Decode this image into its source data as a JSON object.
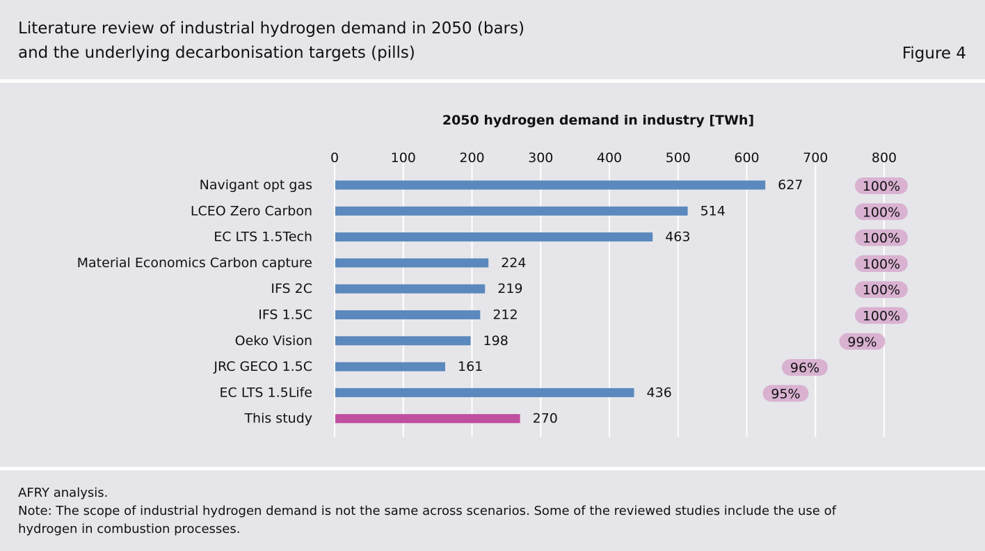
{
  "header": {
    "title_line1": "Literature review of industrial hydrogen demand in 2050 (bars)",
    "title_line2": "and the underlying decarbonisation targets (pills)",
    "figure_label": "Figure 4"
  },
  "footer": {
    "source": "AFRY analysis.",
    "note": "Note: The scope of industrial hydrogen demand is not the same across scenarios. Some of the reviewed studies include the use of hydrogen in combustion processes."
  },
  "colors": {
    "bar": "#5b88bd",
    "bar_highlight": "#bf4fa0",
    "pill": "#d9b2d1",
    "grid": "#ffffff"
  },
  "chart_data": {
    "type": "bar",
    "orientation": "horizontal",
    "xlabel": "2050 hydrogen demand in industry [TWh]",
    "xlim": [
      0,
      800
    ],
    "xticks": [
      0,
      100,
      200,
      300,
      400,
      500,
      600,
      700,
      800
    ],
    "grid": true,
    "categories": [
      "Navigant opt gas",
      "LCEO Zero Carbon",
      "EC LTS 1.5Tech",
      "Material Economics Carbon capture",
      "IFS 2C",
      "IFS 1.5C",
      "Oeko Vision",
      "JRC GECO 1.5C",
      "EC LTS 1.5Life",
      "This study"
    ],
    "values": [
      627,
      514,
      463,
      224,
      219,
      212,
      198,
      161,
      436,
      270
    ],
    "highlight_category": "This study",
    "pills": [
      {
        "category": "Navigant opt gas",
        "label": "100%",
        "value": 100
      },
      {
        "category": "LCEO Zero Carbon",
        "label": "100%",
        "value": 100
      },
      {
        "category": "EC LTS 1.5Tech",
        "label": "100%",
        "value": 100
      },
      {
        "category": "Material Economics Carbon capture",
        "label": "100%",
        "value": 100
      },
      {
        "category": "IFS 2C",
        "label": "100%",
        "value": 100
      },
      {
        "category": "IFS 1.5C",
        "label": "100%",
        "value": 100
      },
      {
        "category": "Oeko Vision",
        "label": "99%",
        "value": 99
      },
      {
        "category": "JRC GECO 1.5C",
        "label": "96%",
        "value": 96
      },
      {
        "category": "EC LTS 1.5Life",
        "label": "95%",
        "value": 95
      }
    ]
  }
}
